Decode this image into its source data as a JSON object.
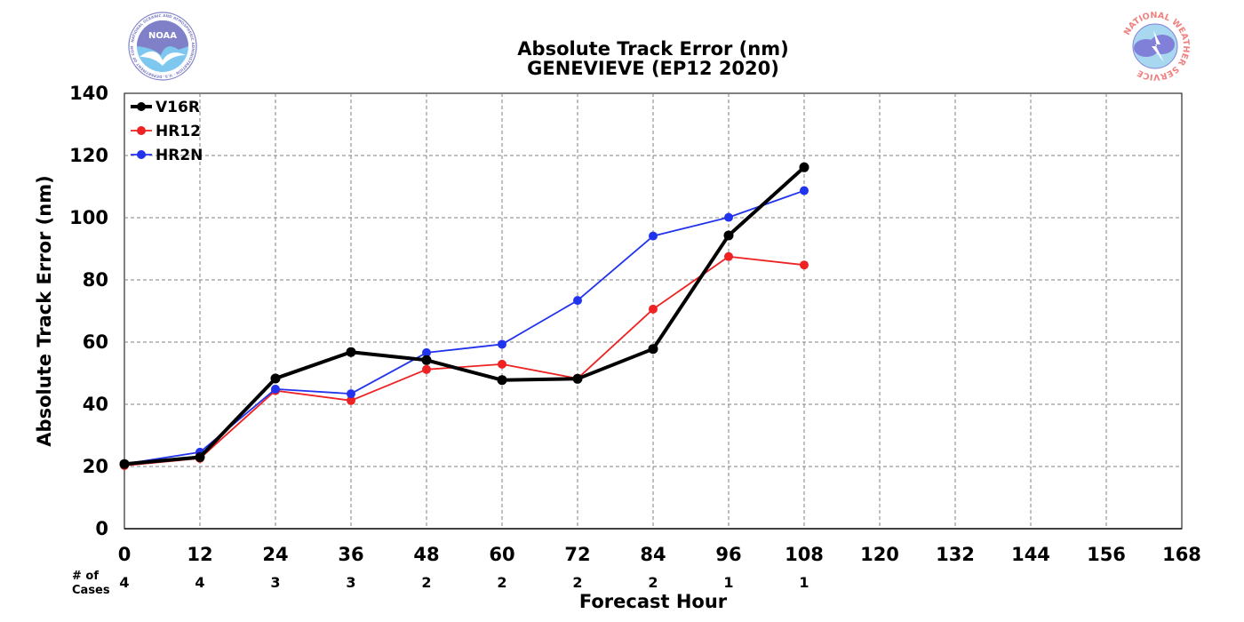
{
  "chart_data": {
    "type": "line",
    "title": "Absolute Track Error (nm)",
    "subtitle": "GENEVIEVE (EP12 2020)",
    "xlabel": "Forecast Hour",
    "ylabel": "Absolute Track Error (nm)",
    "xlim": [
      0,
      168
    ],
    "ylim": [
      0,
      140
    ],
    "x_ticks": [
      0,
      12,
      24,
      36,
      48,
      60,
      72,
      84,
      96,
      108,
      120,
      132,
      144,
      156,
      168
    ],
    "y_ticks": [
      0,
      20,
      40,
      60,
      80,
      100,
      120,
      140
    ],
    "grid": true,
    "legend_position": "top-left",
    "x": [
      0,
      12,
      24,
      36,
      48,
      60,
      72,
      84,
      96,
      108
    ],
    "series": [
      {
        "name": "V16R",
        "color": "#000000",
        "line_width": "thick",
        "values": [
          20.8,
          23.0,
          48.3,
          56.8,
          54.2,
          47.8,
          48.2,
          57.8,
          94.3,
          116.2
        ]
      },
      {
        "name": "HR12",
        "color": "#ee2222",
        "line_width": "thin",
        "values": [
          20.3,
          22.6,
          44.4,
          41.2,
          51.2,
          52.9,
          48.3,
          70.6,
          87.5,
          84.8
        ]
      },
      {
        "name": "HR2N",
        "color": "#2233ee",
        "line_width": "thin",
        "values": [
          20.8,
          24.6,
          44.9,
          43.4,
          56.6,
          59.3,
          73.4,
          94.1,
          100.1,
          108.7
        ]
      }
    ],
    "cases_label_line1": "# of",
    "cases_label_line2": "Cases",
    "cases": [
      {
        "x": 0,
        "count": "4"
      },
      {
        "x": 12,
        "count": "4"
      },
      {
        "x": 24,
        "count": "3"
      },
      {
        "x": 36,
        "count": "3"
      },
      {
        "x": 48,
        "count": "2"
      },
      {
        "x": 60,
        "count": "2"
      },
      {
        "x": 72,
        "count": "2"
      },
      {
        "x": 84,
        "count": "2"
      },
      {
        "x": 96,
        "count": "1"
      },
      {
        "x": 108,
        "count": "1"
      }
    ]
  },
  "logos": {
    "left": {
      "name": "noaa-logo",
      "text": "NOAA",
      "ring_text": "NATIONAL OCEANIC AND ATMOSPHERIC ADMINISTRATION · U.S. DEPARTMENT OF COMMERCE",
      "color": "#7ec8f0",
      "accent": "#8080c8"
    },
    "right": {
      "name": "nws-logo",
      "ring_text": "NATIONAL WEATHER SERVICE",
      "ring_color": "#f08080",
      "disc_color": "#a8d8f0",
      "cloud_color": "#8080d8"
    }
  }
}
